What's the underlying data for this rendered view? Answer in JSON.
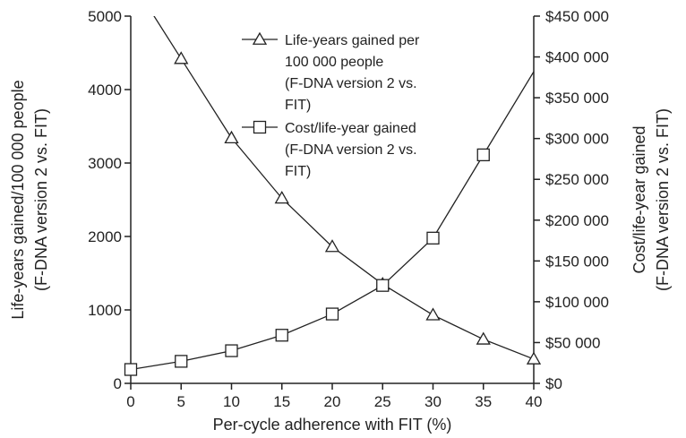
{
  "chart_data": {
    "type": "line",
    "xlabel": "Per-cycle adherence with FIT (%)",
    "ylabel_left": [
      "Life-years gained/100 000 people",
      "(F-DNA version 2 vs. FIT)"
    ],
    "ylabel_right": [
      "Cost/life-year gained",
      "(F-DNA version 2 vs. FIT)"
    ],
    "x_ticks": [
      "0",
      "5",
      "10",
      "15",
      "20",
      "25",
      "30",
      "35",
      "40"
    ],
    "y_left_ticks": [
      "0",
      "1000",
      "2000",
      "3000",
      "4000",
      "5000"
    ],
    "y_right_ticks": [
      "$0",
      "$50 000",
      "$100 000",
      "$150 000",
      "$200 000",
      "$250 000",
      "$300 000",
      "$350 000",
      "$400 000",
      "$450 000"
    ],
    "xlim": [
      0,
      40
    ],
    "ylim_left": [
      0,
      5000
    ],
    "ylim_right": [
      0,
      450000
    ],
    "grid": false,
    "legend_position": "top-center",
    "series": [
      {
        "name": [
          "Life-years gained per",
          "100 000 people",
          "(F-DNA version 2 vs.",
          "FIT)"
        ],
        "axis": "left",
        "marker": "triangle",
        "x": [
          5,
          10,
          15,
          20,
          25,
          30,
          35,
          40
        ],
        "y": [
          4420,
          3340,
          2520,
          1860,
          1350,
          930,
          600,
          330
        ],
        "curve_extends_beyond_top": true
      },
      {
        "name": [
          "Cost/life-year gained",
          "(F-DNA version 2 vs.",
          "FIT)"
        ],
        "axis": "right",
        "marker": "square",
        "x": [
          0,
          5,
          10,
          15,
          20,
          25,
          30,
          35
        ],
        "y": [
          17000,
          27000,
          40000,
          59000,
          85000,
          120000,
          178000,
          280000
        ],
        "curve_extends_beyond_top": true
      }
    ]
  }
}
